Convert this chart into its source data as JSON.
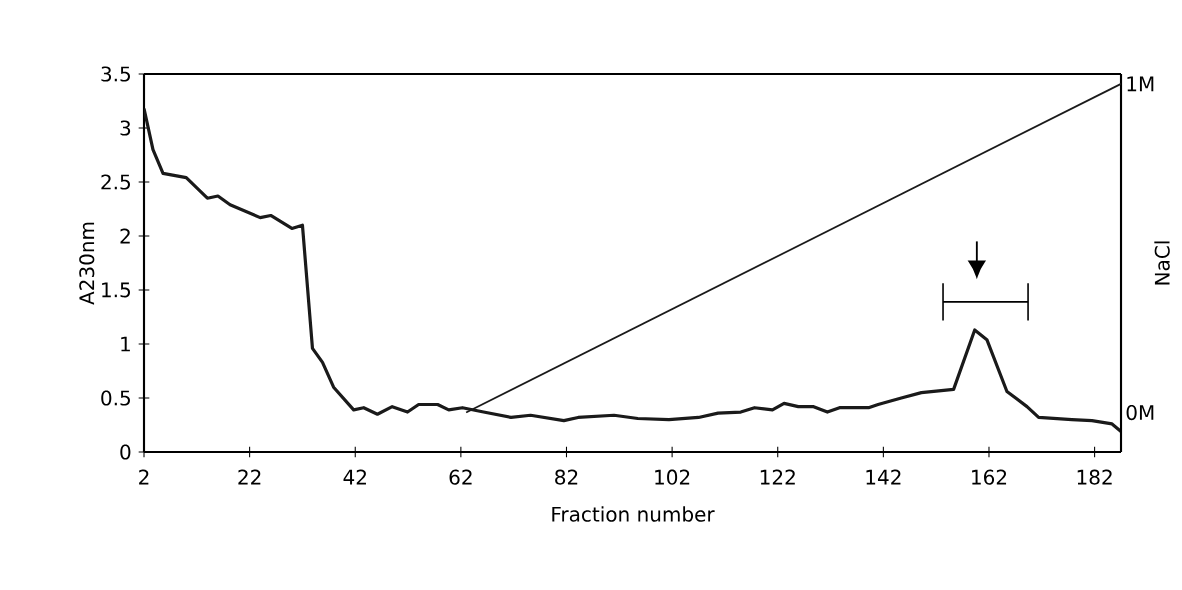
{
  "chart_data": {
    "type": "line",
    "xlabel": "Fraction number",
    "ylabel": "A230nm",
    "y2label": "NaCl",
    "xlim": [
      2,
      187
    ],
    "xticks": [
      2,
      22,
      42,
      62,
      82,
      102,
      122,
      142,
      162,
      182
    ],
    "ylim": [
      0,
      3.5
    ],
    "yticks": [
      0,
      0.5,
      1,
      1.5,
      2,
      2.5,
      3,
      3.5
    ],
    "y2lim": [
      -0.12,
      1.03
    ],
    "y2ticks": [
      {
        "value": 0,
        "label": "0M"
      },
      {
        "value": 1,
        "label": "1M"
      }
    ],
    "marker": "none",
    "line_style": "solid",
    "series": [
      {
        "color": "#1a1a1a",
        "x": [
          2,
          3.7,
          5.6,
          10,
          14,
          16,
          18.3,
          24,
          26,
          30,
          32,
          33.9,
          35.8,
          37.9,
          41.7,
          43.6,
          46.2,
          49,
          51.9,
          54,
          57.6,
          59.7,
          62.3,
          66.3,
          71.5,
          75.2,
          81.5,
          84.2,
          91,
          95.5,
          101.4,
          107,
          110.7,
          115,
          117.6,
          121,
          123.2,
          125.9,
          128.8,
          131.4,
          133.7,
          139.2,
          141,
          145.4,
          149.2,
          155.3,
          159.3,
          161.6,
          165.4,
          169.2,
          171.4,
          177.7,
          181.5,
          185.3,
          187
        ],
        "values": [
          3.18,
          2.8,
          2.58,
          2.54,
          2.35,
          2.37,
          2.29,
          2.17,
          2.19,
          2.07,
          2.1,
          0.96,
          0.83,
          0.6,
          0.39,
          0.41,
          0.35,
          0.42,
          0.37,
          0.44,
          0.44,
          0.39,
          0.41,
          0.37,
          0.32,
          0.34,
          0.29,
          0.32,
          0.34,
          0.31,
          0.3,
          0.32,
          0.36,
          0.37,
          0.41,
          0.39,
          0.45,
          0.42,
          0.42,
          0.37,
          0.41,
          0.41,
          0.44,
          0.5,
          0.55,
          0.58,
          1.13,
          1.04,
          0.56,
          0.42,
          0.32,
          0.3,
          0.29,
          0.26,
          0.19
        ]
      },
      {
        "color": "#1a1a1a",
        "axis": "y2",
        "x": [
          63,
          187
        ],
        "values": [
          0,
          1
        ]
      }
    ]
  }
}
